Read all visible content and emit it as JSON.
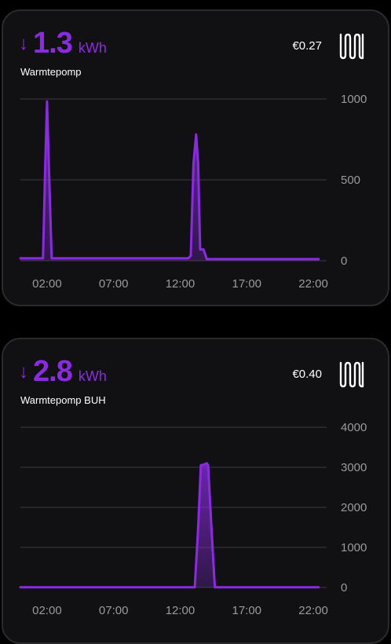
{
  "cards": [
    {
      "arrow": "↓",
      "value": "1.3",
      "unit": "kWh",
      "name": "Warmtepomp",
      "cost": "€0.27",
      "icon": "radiator-icon",
      "chart_data": {
        "type": "area",
        "title": "",
        "xlabel": "",
        "ylabel": "",
        "x_ticks": [
          "02:00",
          "07:00",
          "12:00",
          "17:00",
          "22:00"
        ],
        "y_ticks": [
          "1000",
          "500",
          "0"
        ],
        "ylim": [
          0,
          1000
        ],
        "x_hours_range": [
          0,
          23
        ],
        "grid": true,
        "series": [
          {
            "x": [
              0,
              1.7,
              1.85,
              2.0,
              2.15,
              2.35,
              2.5,
              12.6,
              12.8,
              13.0,
              13.2,
              13.35,
              13.5,
              13.6,
              13.75,
              14.0,
              14.5,
              15.0,
              22.4
            ],
            "y": [
              15,
              15,
              550,
              985,
              550,
              15,
              15,
              15,
              30,
              600,
              780,
              600,
              70,
              70,
              70,
              10,
              10,
              10,
              10
            ]
          }
        ],
        "color": "#8a2be2"
      }
    },
    {
      "arrow": "↓",
      "value": "2.8",
      "unit": "kWh",
      "name": "Warmtepomp BUH",
      "cost": "€0.40",
      "icon": "radiator-icon",
      "chart_data": {
        "type": "area",
        "title": "",
        "xlabel": "",
        "ylabel": "",
        "x_ticks": [
          "02:00",
          "07:00",
          "12:00",
          "17:00",
          "22:00"
        ],
        "y_ticks": [
          "4000",
          "3000",
          "2000",
          "1000",
          "0"
        ],
        "ylim": [
          0,
          4000
        ],
        "x_hours_range": [
          0,
          23
        ],
        "grid": true,
        "series": [
          {
            "x": [
              0,
              13.1,
              13.35,
              13.55,
              13.8,
              14.0,
              14.1,
              14.35,
              14.6,
              22.4
            ],
            "y": [
              5,
              5,
              1500,
              3050,
              3070,
              3100,
              3050,
              1500,
              5,
              5
            ]
          }
        ],
        "color": "#8a2be2"
      }
    }
  ]
}
